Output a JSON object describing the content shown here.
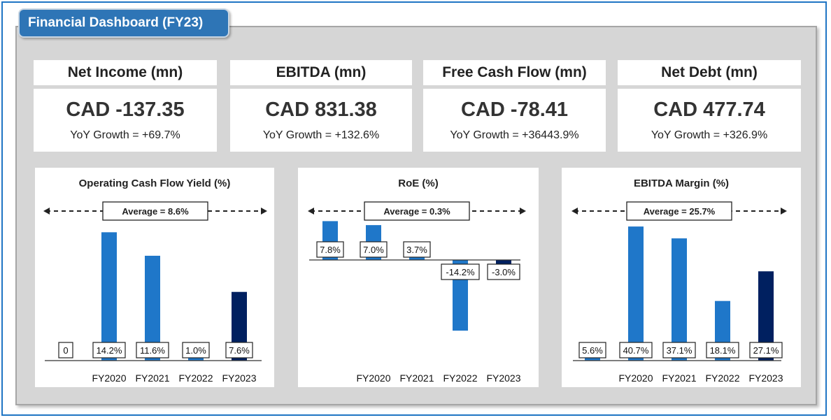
{
  "dashboard": {
    "title": "Financial Dashboard (FY23)"
  },
  "kpis": [
    {
      "title": "Net Income (mn)",
      "value": "CAD -137.35",
      "growth": "YoY Growth = +69.7%"
    },
    {
      "title": "EBITDA (mn)",
      "value": "CAD 831.38",
      "growth": "YoY Growth = +132.6%"
    },
    {
      "title": "Free Cash Flow (mn)",
      "value": "CAD -78.41",
      "growth": "YoY Growth = +36443.9%"
    },
    {
      "title": "Net Debt (mn)",
      "value": "CAD 477.74",
      "growth": "YoY Growth = +326.9%"
    }
  ],
  "colors": {
    "bar": "#1f77c9",
    "bar_highlight": "#002060",
    "accent": "#2e75b6"
  },
  "chart_data": [
    {
      "type": "bar",
      "title": "Operating Cash Flow Yield (%)",
      "average_label": "Average = 8.6%",
      "categories": [
        "",
        "FY2020",
        "FY2021",
        "FY2022",
        "FY2023"
      ],
      "values": [
        0,
        14.2,
        11.6,
        1.0,
        7.6
      ],
      "labels": [
        "0",
        "14.2%",
        "11.6%",
        "1.0%",
        "7.6%"
      ],
      "ylim": [
        0,
        15
      ]
    },
    {
      "type": "bar",
      "title": "RoE (%)",
      "average_label": "Average = 0.3%",
      "categories": [
        "",
        "FY2020",
        "FY2021",
        "FY2022",
        "FY2023"
      ],
      "values": [
        7.8,
        7.0,
        3.7,
        -14.2,
        -3.0
      ],
      "labels": [
        "7.8%",
        "7.0%",
        "3.7%",
        "-14.2%",
        "-3.0%"
      ],
      "ylim": [
        -15,
        8
      ]
    },
    {
      "type": "bar",
      "title": "EBITDA Margin (%)",
      "average_label": "Average = 25.7%",
      "categories": [
        "",
        "FY2020",
        "FY2021",
        "FY2022",
        "FY2023"
      ],
      "values": [
        5.6,
        40.7,
        37.1,
        18.1,
        27.1
      ],
      "labels": [
        "5.6%",
        "40.7%",
        "37.1%",
        "18.1%",
        "27.1%"
      ],
      "ylim": [
        0,
        42
      ]
    }
  ]
}
